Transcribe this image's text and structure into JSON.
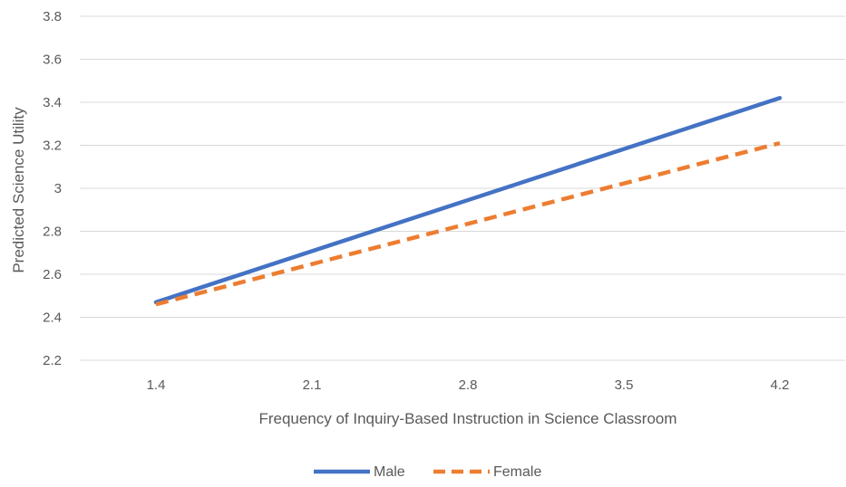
{
  "chart_data": {
    "type": "line",
    "title": "",
    "xlabel": "Frequency of Inquiry-Based Instruction in Science Classroom",
    "ylabel": "Predicted Science Utility",
    "categories": [
      "1.4",
      "2.1",
      "2.8",
      "3.5",
      "4.2"
    ],
    "x": [
      1.4,
      4.2
    ],
    "ylim": [
      2.2,
      3.8
    ],
    "yticks": [
      "2.2",
      "2.4",
      "2.6",
      "2.8",
      "3",
      "3.2",
      "3.4",
      "3.6",
      "3.8"
    ],
    "grid": true,
    "legend_position": "bottom",
    "series": [
      {
        "name": "Male",
        "values": [
          2.47,
          3.42
        ],
        "color": "#4472C4",
        "style": "solid"
      },
      {
        "name": "Female",
        "values": [
          2.46,
          3.21
        ],
        "color": "#ED7D31",
        "style": "dashed"
      }
    ]
  }
}
